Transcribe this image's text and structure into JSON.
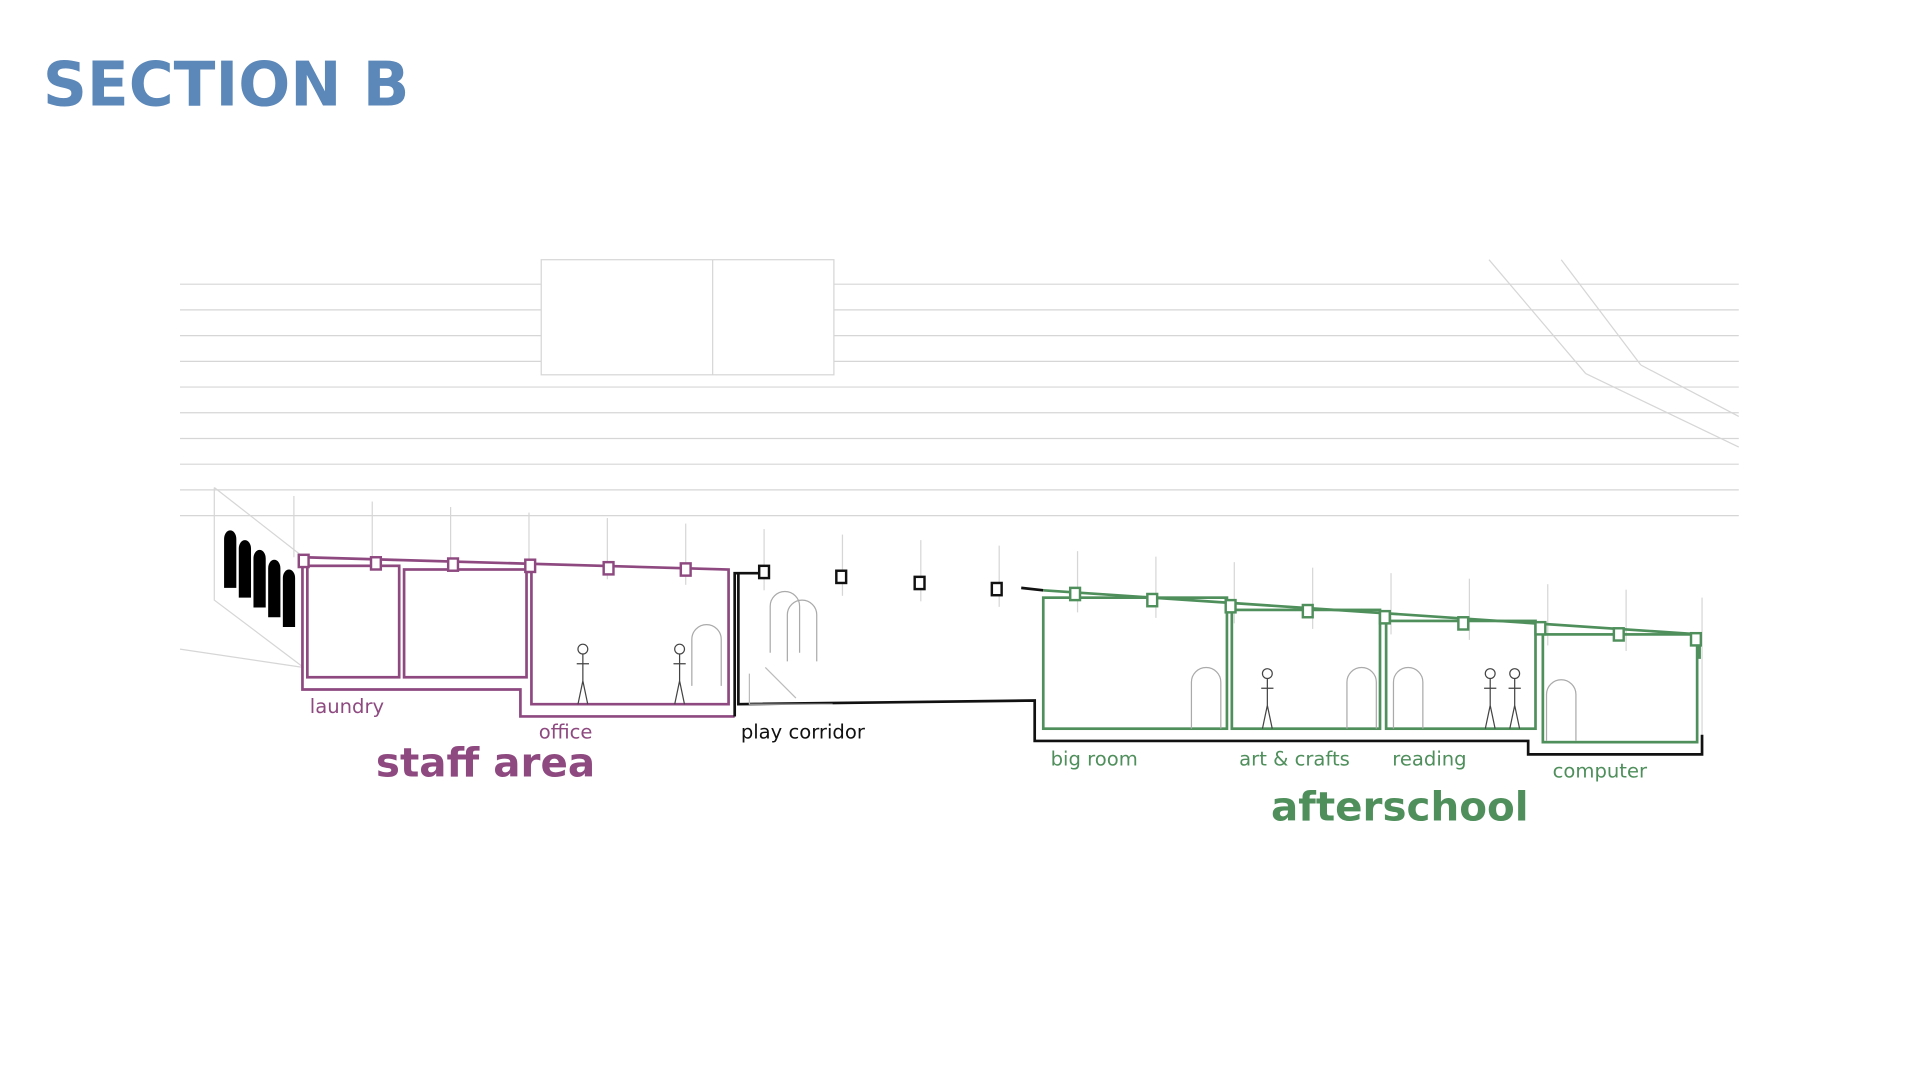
{
  "title": "SECTION B",
  "zones": [
    {
      "name": "staff area",
      "rooms": [
        "laundry",
        "office"
      ]
    },
    {
      "name": "afterschool",
      "rooms": [
        "big room",
        "art & crafts",
        "reading",
        "computer"
      ]
    }
  ],
  "corridor": "play corridor"
}
